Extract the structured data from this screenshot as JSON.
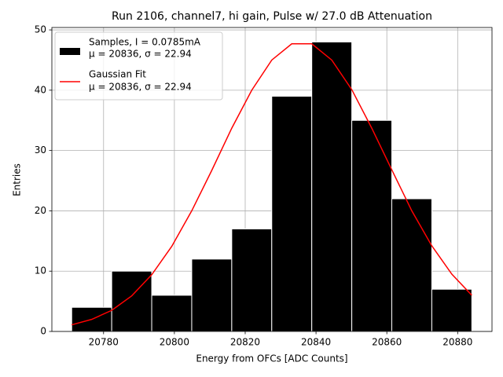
{
  "chart_data": {
    "type": "histogram",
    "title": "Run 2106, channel7, hi gain, Pulse w/ 27.0 dB Attenuation",
    "xlabel": "Energy from OFCs [ADC Counts]",
    "ylabel": "Entries",
    "xlim": [
      20765.4,
      20889.7
    ],
    "ylim": [
      0,
      50.4
    ],
    "xticks": [
      20780,
      20800,
      20820,
      20840,
      20860,
      20880
    ],
    "yticks": [
      0,
      10,
      20,
      30,
      40,
      50
    ],
    "grid": true,
    "legend": "upper left",
    "name": "Samples, I = 0.0785mA",
    "name_stats": "μ = 20836, σ = 22.94",
    "color": "#000000",
    "edgecolor": "#ffffff",
    "bins": [
      20771,
      20782.3,
      20793.6,
      20804.9,
      20816.2,
      20827.5,
      20838.8,
      20850.1,
      20861.4,
      20872.7,
      20884
    ],
    "values": [
      4,
      10,
      6,
      12,
      17,
      39,
      48,
      35,
      22,
      7
    ],
    "overlay": {
      "type": "line",
      "name": "Gaussian Fit",
      "name_stats": "μ = 20836, σ = 22.94",
      "color": "#ff0000",
      "x": [
        20771,
        20776.65,
        20782.3,
        20787.95,
        20793.6,
        20799.25,
        20804.9,
        20810.55,
        20816.2,
        20821.85,
        20827.5,
        20833.15,
        20838.8,
        20844.45,
        20850.1,
        20855.75,
        20861.4,
        20867.05,
        20872.7,
        20878.35,
        20884
      ],
      "values": [
        1.1,
        2.0,
        3.5,
        5.9,
        9.4,
        14.1,
        20.0,
        26.7,
        33.7,
        40.0,
        45.0,
        47.7,
        47.7,
        45.0,
        40.1,
        33.7,
        26.8,
        20.0,
        14.2,
        9.5,
        6.0
      ]
    }
  }
}
